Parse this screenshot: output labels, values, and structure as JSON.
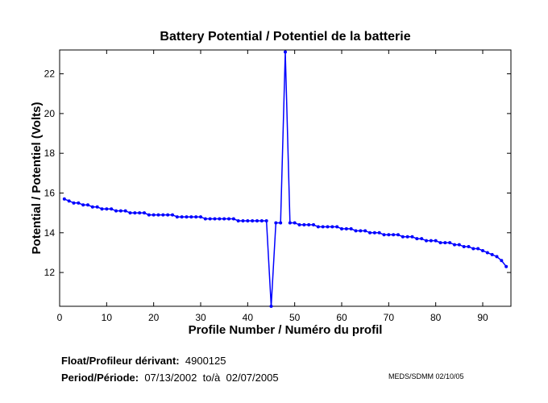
{
  "chart_data": {
    "type": "line",
    "title": "Battery Potential / Potentiel de la batterie",
    "xlabel": "Profile Number / Numéro du profil",
    "ylabel": "Potential / Potentiel (Volts)",
    "xlim": [
      0,
      96
    ],
    "ylim": [
      10.3,
      23.2
    ],
    "xticks": [
      0,
      10,
      20,
      30,
      40,
      50,
      60,
      70,
      80,
      90
    ],
    "yticks": [
      12,
      14,
      16,
      18,
      20,
      22
    ],
    "grid": false,
    "color": "#0000ff",
    "x": [
      1,
      2,
      3,
      4,
      5,
      6,
      7,
      8,
      9,
      10,
      11,
      12,
      13,
      14,
      15,
      16,
      17,
      18,
      19,
      20,
      21,
      22,
      23,
      24,
      25,
      26,
      27,
      28,
      29,
      30,
      31,
      32,
      33,
      34,
      35,
      36,
      37,
      38,
      39,
      40,
      41,
      42,
      43,
      44,
      45,
      46,
      47,
      48,
      49,
      50,
      51,
      52,
      53,
      54,
      55,
      56,
      57,
      58,
      59,
      60,
      61,
      62,
      63,
      64,
      65,
      66,
      67,
      68,
      69,
      70,
      71,
      72,
      73,
      74,
      75,
      76,
      77,
      78,
      79,
      80,
      81,
      82,
      83,
      84,
      85,
      86,
      87,
      88,
      89,
      90,
      91,
      92,
      93,
      94,
      95
    ],
    "y": [
      15.7,
      15.6,
      15.5,
      15.5,
      15.4,
      15.4,
      15.3,
      15.3,
      15.2,
      15.2,
      15.2,
      15.1,
      15.1,
      15.1,
      15.0,
      15.0,
      15.0,
      15.0,
      14.9,
      14.9,
      14.9,
      14.9,
      14.9,
      14.9,
      14.8,
      14.8,
      14.8,
      14.8,
      14.8,
      14.8,
      14.7,
      14.7,
      14.7,
      14.7,
      14.7,
      14.7,
      14.7,
      14.6,
      14.6,
      14.6,
      14.6,
      14.6,
      14.6,
      14.6,
      10.3,
      14.5,
      14.5,
      23.1,
      14.5,
      14.5,
      14.4,
      14.4,
      14.4,
      14.4,
      14.3,
      14.3,
      14.3,
      14.3,
      14.3,
      14.2,
      14.2,
      14.2,
      14.1,
      14.1,
      14.1,
      14.0,
      14.0,
      14.0,
      13.9,
      13.9,
      13.9,
      13.9,
      13.8,
      13.8,
      13.8,
      13.7,
      13.7,
      13.6,
      13.6,
      13.6,
      13.5,
      13.5,
      13.5,
      13.4,
      13.4,
      13.3,
      13.3,
      13.2,
      13.2,
      13.1,
      13.0,
      12.9,
      12.8,
      12.6,
      12.3
    ]
  },
  "footer": {
    "float_label": "Float/Profileur dérivant:",
    "float_value": "4900125",
    "period_label": "Period/Période:",
    "period_value": "07/13/2002  to/à  02/07/2005",
    "credit": "MEDS/SDMM  02/10/05"
  }
}
